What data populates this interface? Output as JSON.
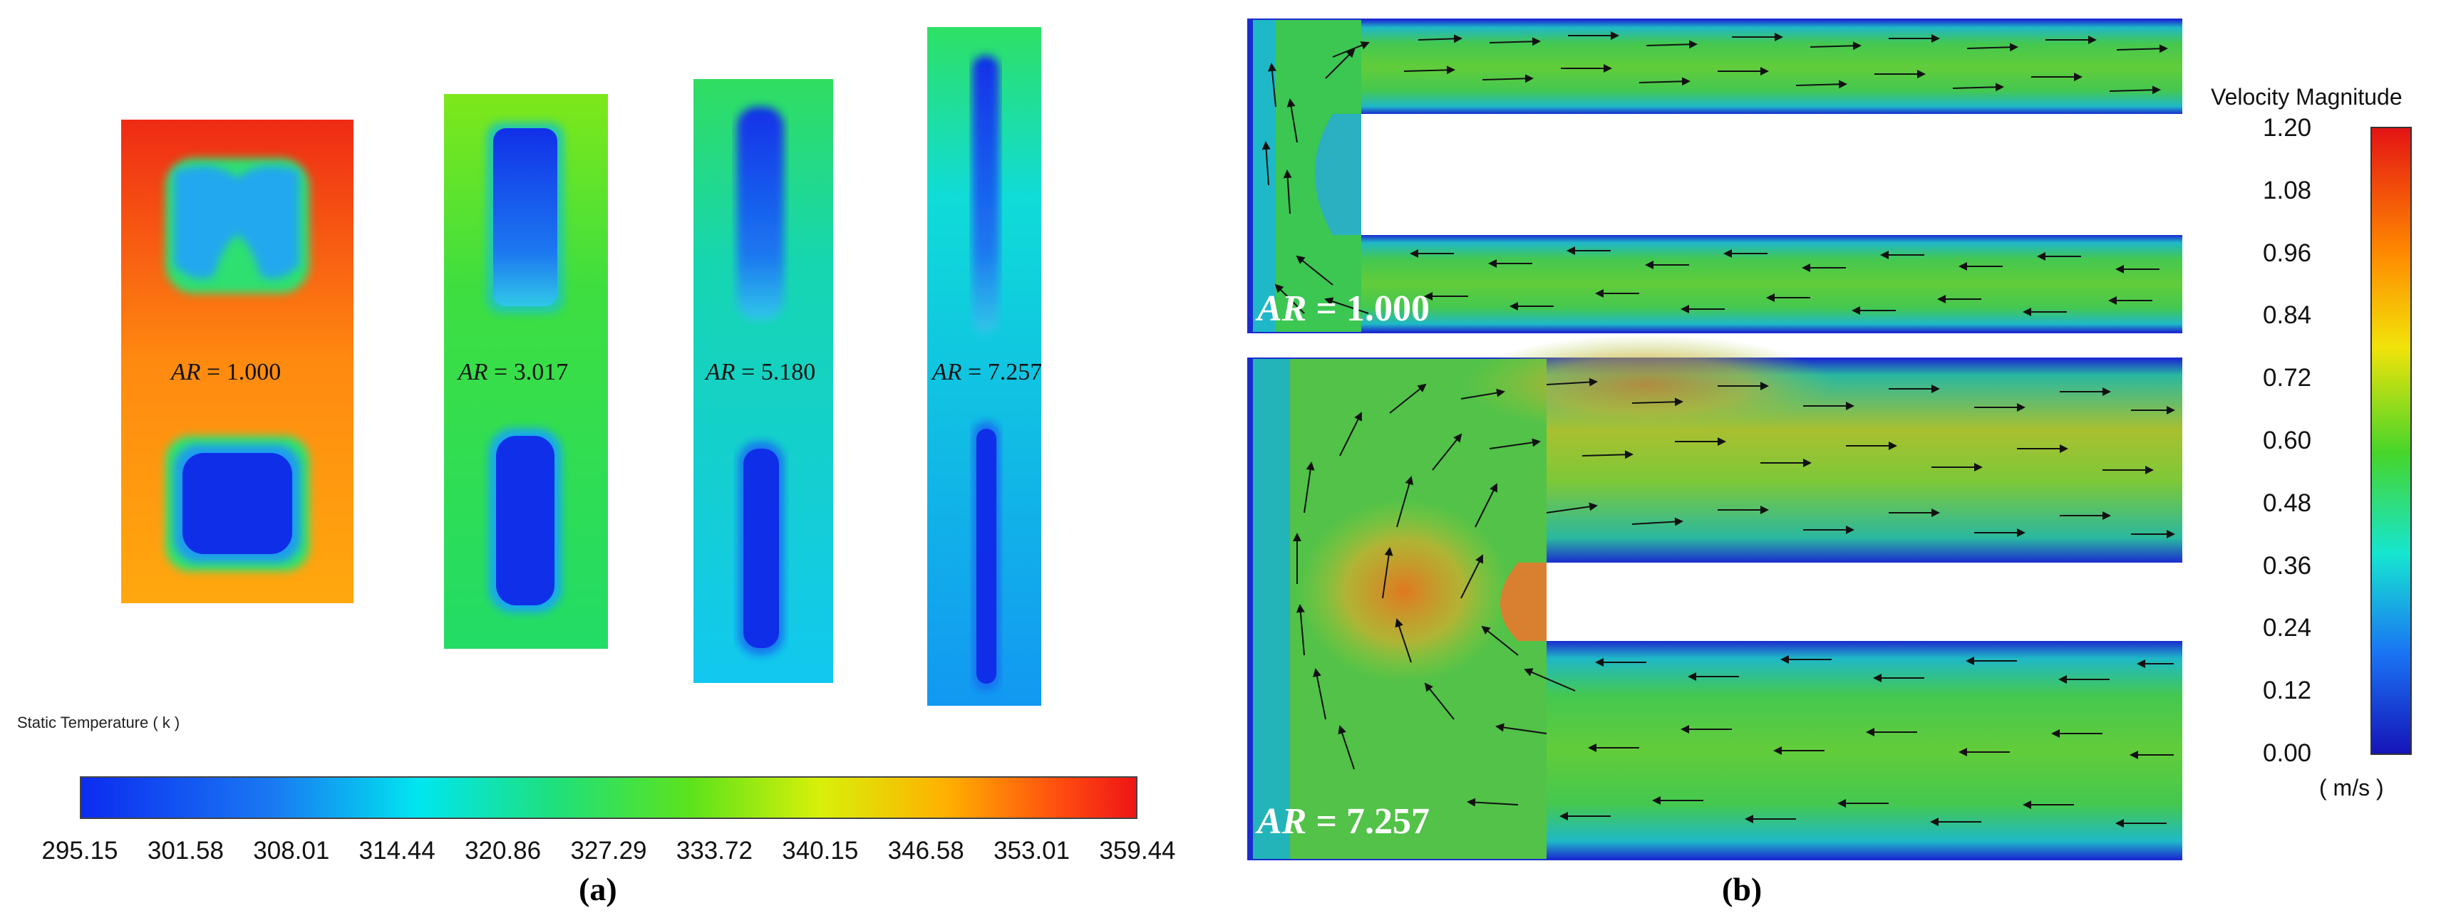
{
  "panel_a": {
    "caption": "(a)",
    "legend_title": "Static Temperature ( k )",
    "colorbar_ticks": [
      "295.15",
      "301.58",
      "308.01",
      "314.44",
      "320.86",
      "327.29",
      "333.72",
      "340.15",
      "346.58",
      "353.01",
      "359.44"
    ],
    "ar_prefix": "AR",
    "ar_values": [
      " = 1.000",
      " = 3.017",
      " = 5.180",
      " = 7.257"
    ]
  },
  "panel_b": {
    "caption": "(b)",
    "legend_title": "Velocity Magnitude",
    "legend_unit": "( m/s )",
    "colorbar_ticks": [
      "1.20",
      "1.08",
      "0.96",
      "0.84",
      "0.72",
      "0.60",
      "0.48",
      "0.36",
      "0.24",
      "0.12",
      "0.00"
    ],
    "labels": [
      {
        "prefix": "AR",
        "value": " = 1.000"
      },
      {
        "prefix": "AR",
        "value": " = 7.257"
      }
    ]
  },
  "colors": {
    "temp_scale": [
      "#0b2cf0",
      "#1a78f2",
      "#00e6f0",
      "#1fe07a",
      "#5ee31a",
      "#d8f00a",
      "#ffb000",
      "#ff4a10",
      "#ee1515"
    ],
    "vel_scale": [
      "#e41414",
      "#ff8a00",
      "#f2e30a",
      "#46d52a",
      "#16e6d0",
      "#1a74f4",
      "#1514b8"
    ]
  }
}
